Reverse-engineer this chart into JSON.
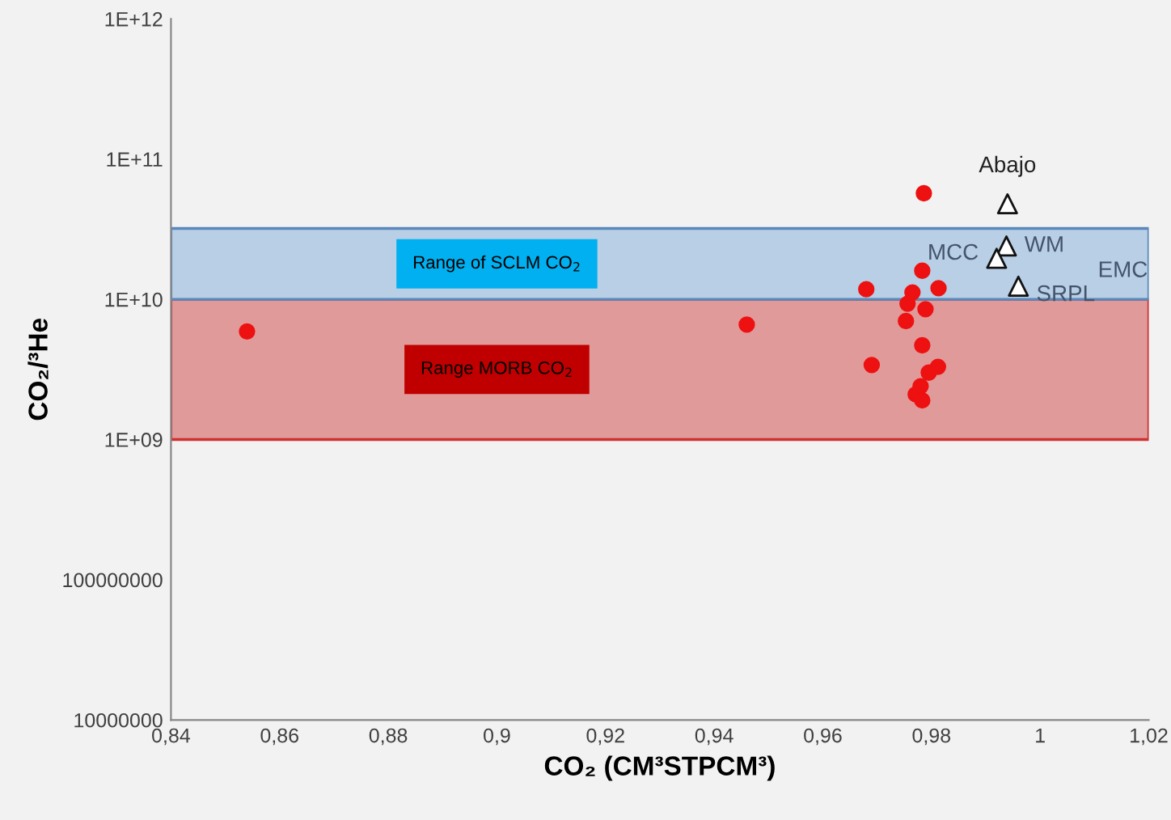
{
  "chart_data": {
    "type": "scatter",
    "xlabel": "CO₂ (CM³STPCM³)",
    "ylabel": "CO₂/³He",
    "log": "y",
    "grid": false,
    "legend": false,
    "xlim": [
      0.84,
      1.02
    ],
    "ylim": [
      10000000,
      1000000000000
    ],
    "xticks": [
      {
        "value": 0.84,
        "label": "0,84"
      },
      {
        "value": 0.86,
        "label": "0,86"
      },
      {
        "value": 0.88,
        "label": "0,88"
      },
      {
        "value": 0.9,
        "label": "0,9"
      },
      {
        "value": 0.92,
        "label": "0,92"
      },
      {
        "value": 0.94,
        "label": "0,94"
      },
      {
        "value": 0.96,
        "label": "0,96"
      },
      {
        "value": 0.98,
        "label": "0,98"
      },
      1,
      {
        "value": 1.02,
        "label": "1,02"
      }
    ],
    "yticks": [
      10000000,
      100000000,
      {
        "value": 1000000000,
        "label": "1E+09"
      },
      {
        "value": 10000000000,
        "label": "1E+10"
      },
      {
        "value": 100000000000,
        "label": "1E+11"
      },
      {
        "value": 1000000000000,
        "label": "1E+12"
      }
    ],
    "bands": [
      {
        "axis": "y",
        "from": 1000000000,
        "to": 10000000000,
        "label": "Range MORB CO$_{2}$",
        "color": "#e09a9a"
      },
      {
        "axis": "y",
        "from": 10000000000,
        "to": 32000000000,
        "label": "Range of SCLM CO$_{2}$",
        "color": "#b8cfe6"
      }
    ],
    "series": [
      {
        "color": "#ee1111",
        "marker": "circle",
        "x": [
          0.854,
          0.946,
          0.9786,
          0.968,
          0.969,
          0.9783,
          0.9813,
          0.9765,
          0.9756,
          0.9789,
          0.9753,
          0.9783,
          0.9812,
          0.9795,
          0.978,
          0.9771,
          0.9783
        ],
        "values": [
          5900000000,
          6600000000,
          57000000000,
          11800000000,
          3400000000,
          16000000000,
          12000000000,
          11200000000,
          9300000000,
          8500000000,
          7000000000,
          4700000000,
          3300000000,
          3000000000,
          2400000000,
          2100000000,
          1900000000
        ]
      },
      {
        "color": "#ffffff",
        "marker": "triangle",
        "x": [
          0.994,
          0.9938,
          0.992,
          0.996
        ],
        "values": [
          48000000000,
          24000000000,
          19600000000,
          12400000000
        ]
      }
    ],
    "annotations": [
      {
        "text": "Abajo",
        "x": 0.994,
        "y": 48000000000
      },
      {
        "text": "WM",
        "x": 0.9938,
        "y": 24000000000
      },
      {
        "text": "MCC",
        "x": 0.992,
        "y": 19600000000
      },
      {
        "text": "SRPL",
        "x": 0.996,
        "y": 12400000000
      },
      "EMC"
    ]
  }
}
